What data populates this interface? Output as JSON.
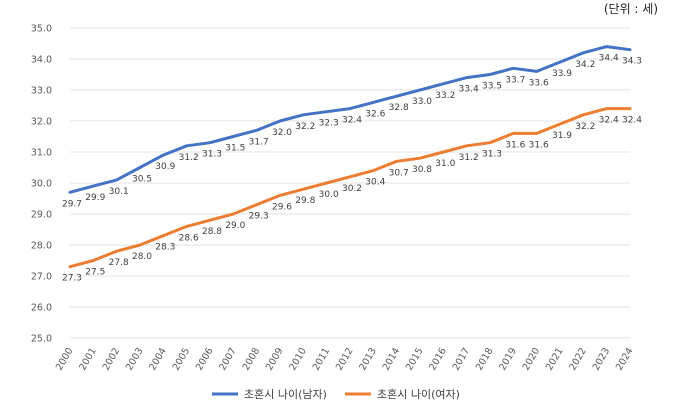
{
  "unit_label": "(단위 : 세)",
  "chart_data": {
    "type": "line",
    "title": "",
    "xlabel": "",
    "ylabel": "",
    "x": [
      "2000",
      "2001",
      "2002",
      "2003",
      "2004",
      "2005",
      "2006",
      "2007",
      "2008",
      "2009",
      "2010",
      "2011",
      "2012",
      "2013",
      "2014",
      "2015",
      "2016",
      "2017",
      "2018",
      "2019",
      "2020",
      "2021",
      "2022",
      "2023",
      "2024"
    ],
    "ylim": [
      25.0,
      35.0
    ],
    "yticks": [
      "25.0",
      "26.0",
      "27.0",
      "28.0",
      "29.0",
      "30.0",
      "31.0",
      "32.0",
      "33.0",
      "34.0",
      "35.0"
    ],
    "grid": true,
    "legend_position": "bottom",
    "series": [
      {
        "name": "초혼시 나이(남자)",
        "color": "#4472C4",
        "values": [
          29.7,
          29.9,
          30.1,
          30.5,
          30.9,
          31.2,
          31.3,
          31.5,
          31.7,
          32.0,
          32.2,
          32.3,
          32.4,
          32.6,
          32.8,
          33.0,
          33.2,
          33.4,
          33.5,
          33.7,
          33.6,
          33.9,
          34.2,
          34.4,
          34.3
        ],
        "labels": [
          "29.7",
          "29.9",
          "30.1",
          "30.5",
          "30.9",
          "31.2",
          "31.3",
          "31.5",
          "31.7",
          "32.0",
          "32.2",
          "32.3",
          "32.4",
          "32.6",
          "32.8",
          "33.0",
          "33.2",
          "33.4",
          "33.5",
          "33.7",
          "33.6",
          "33.9",
          "34.2",
          "34.4",
          "34.3"
        ]
      },
      {
        "name": "초혼시 나이(여자)",
        "color": "#ED7D31",
        "values": [
          27.3,
          27.5,
          27.8,
          28.0,
          28.3,
          28.6,
          28.8,
          29.0,
          29.3,
          29.6,
          29.8,
          30.0,
          30.2,
          30.4,
          30.7,
          30.8,
          31.0,
          31.2,
          31.3,
          31.6,
          31.6,
          31.9,
          32.2,
          32.4,
          32.4
        ],
        "labels": [
          "27.3",
          "27.5",
          "27.8",
          "28.0",
          "28.3",
          "28.6",
          "28.8",
          "29.0",
          "29.3",
          "29.6",
          "29.8",
          "30.0",
          "30.2",
          "30.4",
          "30.7",
          "30.8",
          "31.0",
          "31.2",
          "31.3",
          "31.6",
          "31.6",
          "31.9",
          "32.2",
          "32.4",
          "32.4"
        ]
      }
    ]
  }
}
